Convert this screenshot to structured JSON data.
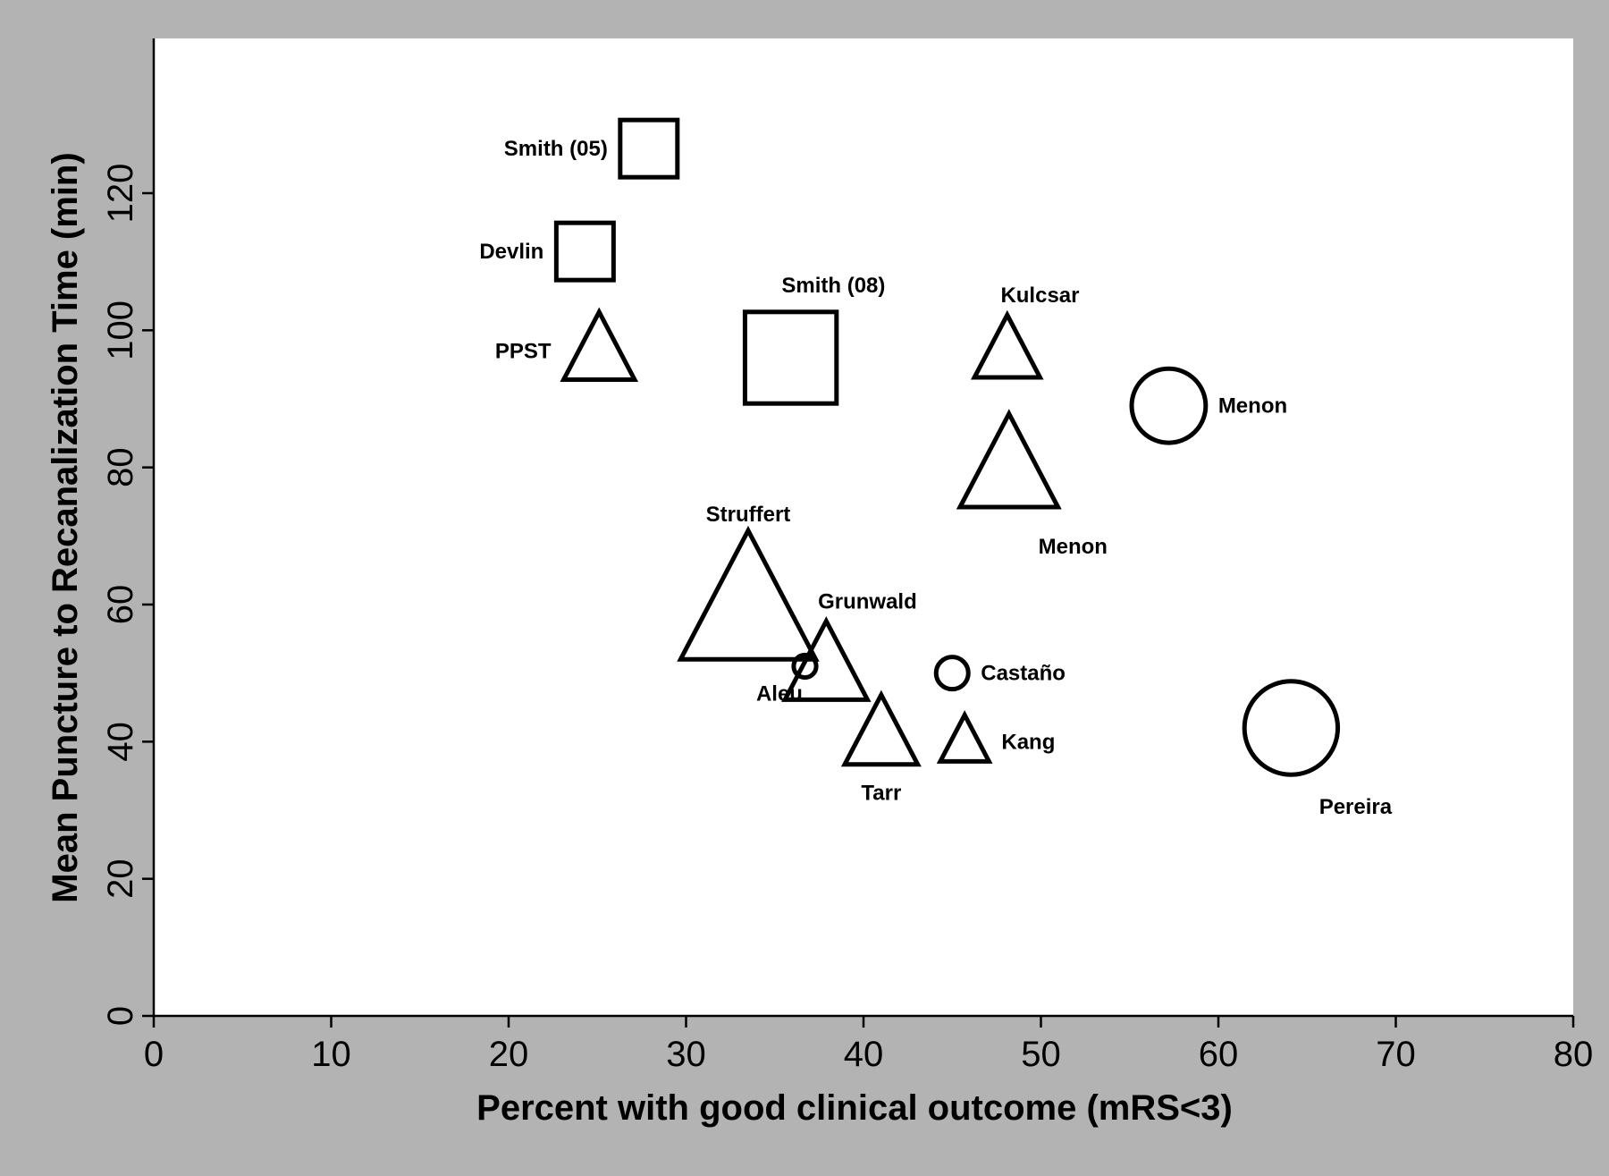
{
  "chart_data": {
    "type": "scatter",
    "xlabel": "Percent with good clinical outcome (mRS<3)",
    "ylabel": "Mean Puncture to Recanalization Time (min)",
    "xlim": [
      0,
      80
    ],
    "ylim": [
      0,
      140
    ],
    "xticks": [
      0,
      10,
      20,
      30,
      40,
      50,
      60,
      70,
      80
    ],
    "yticks": [
      0,
      20,
      40,
      60,
      80,
      100,
      120
    ],
    "grid": false,
    "marker_shapes": [
      "square",
      "triangle",
      "circle"
    ],
    "points": [
      {
        "label": "Smith (05)",
        "x": 27.9,
        "y": 126.5,
        "shape": "square",
        "size": 1.0,
        "label_pos": "left"
      },
      {
        "label": "Devlin",
        "x": 24.3,
        "y": 111.5,
        "shape": "square",
        "size": 1.0,
        "label_pos": "left"
      },
      {
        "label": "Smith (08)",
        "x": 35.9,
        "y": 96,
        "shape": "square",
        "size": 1.6,
        "label_pos": "top-right"
      },
      {
        "label": "PPST",
        "x": 25.1,
        "y": 97,
        "shape": "triangle",
        "size": 1.05,
        "label_pos": "left"
      },
      {
        "label": "Kulcsar",
        "x": 48.1,
        "y": 97,
        "shape": "triangle",
        "size": 0.97,
        "label_pos": "top-right"
      },
      {
        "label": "Menon",
        "x": 57.2,
        "y": 89,
        "shape": "circle",
        "size": 1.15,
        "label_pos": "right"
      },
      {
        "label": "Menon",
        "x": 48.2,
        "y": 80,
        "shape": "triangle",
        "size": 1.45,
        "label_pos": "bottom-right"
      },
      {
        "label": "Struffert",
        "x": 33.5,
        "y": 60,
        "shape": "triangle",
        "size": 2.0,
        "label_pos": "top"
      },
      {
        "label": "Grunwald",
        "x": 37.9,
        "y": 51,
        "shape": "triangle",
        "size": 1.22,
        "label_pos": "top-right"
      },
      {
        "label": "Aleu",
        "x": 36.7,
        "y": 51,
        "shape": "circle",
        "size": 0.35,
        "label_pos": "bottom-left"
      },
      {
        "label": "Castaño",
        "x": 45,
        "y": 50,
        "shape": "circle",
        "size": 0.5,
        "label_pos": "right"
      },
      {
        "label": "Tarr",
        "x": 41,
        "y": 41,
        "shape": "triangle",
        "size": 1.08,
        "label_pos": "bottom"
      },
      {
        "label": "Kang",
        "x": 45.7,
        "y": 40,
        "shape": "triangle",
        "size": 0.72,
        "label_pos": "right"
      },
      {
        "label": "Pereira",
        "x": 64.1,
        "y": 42,
        "shape": "circle",
        "size": 1.45,
        "label_pos": "bottom-right"
      }
    ]
  }
}
